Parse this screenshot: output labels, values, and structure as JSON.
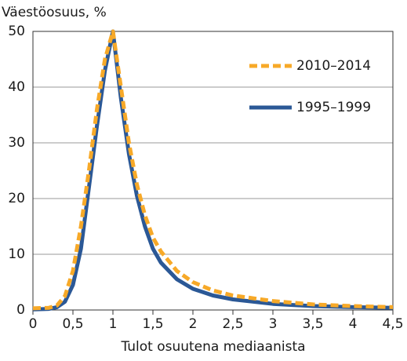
{
  "chart_data": {
    "type": "line",
    "title": "Väestöosuus, %",
    "x_label": "Tulot osuutena mediaanista",
    "x": [
      0,
      0.2,
      0.3,
      0.4,
      0.5,
      0.6,
      0.7,
      0.8,
      0.9,
      1.0,
      1.1,
      1.2,
      1.3,
      1.4,
      1.5,
      1.6,
      1.8,
      2.0,
      2.25,
      2.5,
      3,
      3.5,
      4,
      4.5
    ],
    "series": [
      {
        "name": "2010–2014",
        "color": "#f7a928",
        "dashed": true,
        "values": [
          0.3,
          0.4,
          0.8,
          2.5,
          7,
          15,
          25,
          36,
          45,
          50,
          40,
          30,
          22.5,
          17,
          13,
          10.5,
          7,
          5,
          3.5,
          2.6,
          1.6,
          1.0,
          0.7,
          0.5
        ]
      },
      {
        "name": "1995–1999",
        "color": "#2b5896",
        "dashed": false,
        "values": [
          0.1,
          0.2,
          0.5,
          1.5,
          4.5,
          11,
          22,
          33,
          43,
          50,
          38,
          28,
          20.5,
          15,
          11,
          8.5,
          5.5,
          3.8,
          2.6,
          1.9,
          1.1,
          0.7,
          0.5,
          0.4
        ]
      }
    ],
    "xlim": [
      0,
      4.5
    ],
    "xticks": [
      0,
      {
        "value": 0.5,
        "label": "0,5"
      },
      1,
      {
        "value": 1.5,
        "label": "1,5"
      },
      2,
      {
        "value": 2.5,
        "label": "2,5"
      },
      3,
      {
        "value": 3.5,
        "label": "3,5"
      },
      4,
      {
        "value": 4.5,
        "label": "4,5"
      }
    ],
    "ylim": [
      0,
      50
    ],
    "yticks": [
      0,
      10,
      20,
      30,
      40,
      50
    ],
    "grid": true,
    "legend": "upper right"
  }
}
